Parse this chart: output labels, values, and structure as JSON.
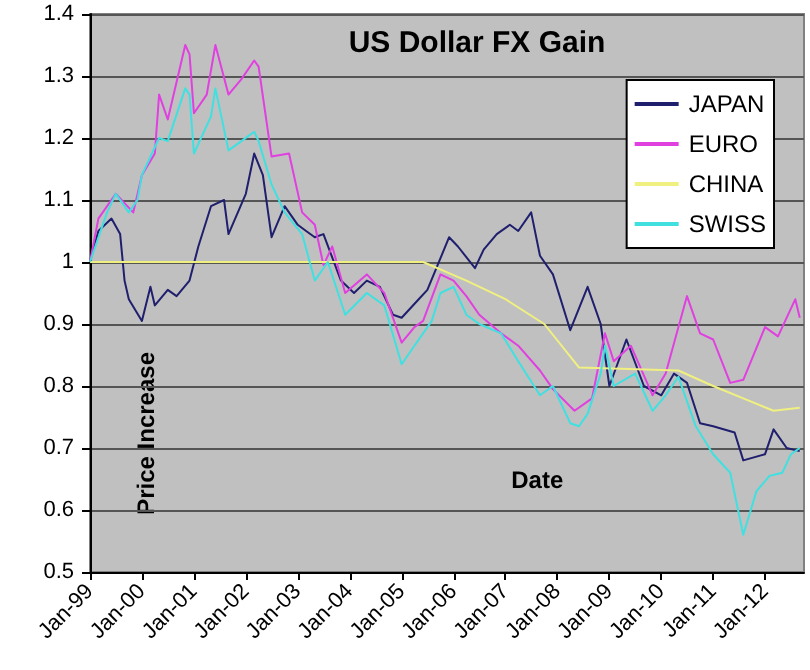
{
  "chart_data": {
    "type": "line",
    "title": "US Dollar FX Gain",
    "xlabel": "Date",
    "ylabel": "Price Increase",
    "xlim": [
      "1999-01",
      "2012-10"
    ],
    "xticks": [
      {
        "value": "1999-01",
        "label": "Jan-99"
      },
      {
        "value": "2000-01",
        "label": "Jan-00"
      },
      {
        "value": "2001-01",
        "label": "Jan-01"
      },
      {
        "value": "2002-01",
        "label": "Jan-02"
      },
      {
        "value": "2003-01",
        "label": "Jan-03"
      },
      {
        "value": "2004-01",
        "label": "Jan-04"
      },
      {
        "value": "2005-01",
        "label": "Jan-05"
      },
      {
        "value": "2006-01",
        "label": "Jan-06"
      },
      {
        "value": "2007-01",
        "label": "Jan-07"
      },
      {
        "value": "2008-01",
        "label": "Jan-08"
      },
      {
        "value": "2009-01",
        "label": "Jan-09"
      },
      {
        "value": "2010-01",
        "label": "Jan-10"
      },
      {
        "value": "2011-01",
        "label": "Jan-11"
      },
      {
        "value": "2012-01",
        "label": "Jan-12"
      }
    ],
    "ylim": [
      0.5,
      1.4
    ],
    "yticks": [
      0.5,
      0.6,
      0.7,
      0.8,
      0.9,
      1,
      1.1,
      1.2,
      1.3,
      1.4
    ],
    "grid": "y",
    "legend": "top right",
    "marker": "none",
    "line_style": "solid",
    "series": [
      {
        "name": "JAPAN",
        "color": "#1f1f6e",
        "x": [
          "1999-01",
          "1999-03",
          "1999-06",
          "1999-08",
          "1999-09",
          "1999-10",
          "2000-01",
          "2000-03",
          "2000-04",
          "2000-07",
          "2000-09",
          "2000-12",
          "2001-02",
          "2001-05",
          "2001-08",
          "2001-09",
          "2002-01",
          "2002-03",
          "2002-05",
          "2002-07",
          "2002-10",
          "2003-01",
          "2003-03",
          "2003-05",
          "2003-07",
          "2003-11",
          "2004-02",
          "2004-05",
          "2004-08",
          "2004-11",
          "2005-01",
          "2005-05",
          "2005-07",
          "2005-12",
          "2006-02",
          "2006-06",
          "2006-08",
          "2006-11",
          "2007-02",
          "2007-04",
          "2007-07",
          "2007-09",
          "2007-12",
          "2008-04",
          "2008-08",
          "2008-11",
          "2009-01",
          "2009-05",
          "2009-09",
          "2010-01",
          "2010-04",
          "2010-07",
          "2010-10",
          "2011-01",
          "2011-06",
          "2011-08",
          "2012-01",
          "2012-03",
          "2012-06",
          "2012-09"
        ],
        "values": [
          1.0,
          1.05,
          1.07,
          1.045,
          0.97,
          0.94,
          0.905,
          0.96,
          0.93,
          0.955,
          0.945,
          0.97,
          1.025,
          1.09,
          1.1,
          1.045,
          1.11,
          1.175,
          1.14,
          1.04,
          1.09,
          1.06,
          1.05,
          1.04,
          1.045,
          0.97,
          0.95,
          0.97,
          0.96,
          0.915,
          0.91,
          0.94,
          0.955,
          1.04,
          1.025,
          0.99,
          1.02,
          1.045,
          1.06,
          1.05,
          1.08,
          1.01,
          0.98,
          0.89,
          0.96,
          0.9,
          0.8,
          0.875,
          0.8,
          0.785,
          0.82,
          0.805,
          0.74,
          0.735,
          0.725,
          0.68,
          0.69,
          0.73,
          0.7,
          0.695
        ]
      },
      {
        "name": "EURO",
        "color": "#e040e0",
        "x": [
          "1999-01",
          "1999-03",
          "1999-07",
          "1999-09",
          "1999-11",
          "2000-01",
          "2000-04",
          "2000-05",
          "2000-07",
          "2000-11",
          "2000-12",
          "2001-01",
          "2001-04",
          "2001-06",
          "2001-09",
          "2001-12",
          "2002-03",
          "2002-04",
          "2002-07",
          "2002-11",
          "2003-02",
          "2003-05",
          "2003-07",
          "2003-09",
          "2003-12",
          "2004-05",
          "2004-09",
          "2005-01",
          "2005-04",
          "2005-06",
          "2005-10",
          "2006-01",
          "2006-04",
          "2006-07",
          "2006-12",
          "2007-04",
          "2007-09",
          "2007-12",
          "2008-05",
          "2008-09",
          "2008-12",
          "2009-02",
          "2009-06",
          "2009-11",
          "2010-02",
          "2010-07",
          "2010-10",
          "2011-01",
          "2011-05",
          "2011-08",
          "2012-01",
          "2012-04",
          "2012-08",
          "2012-09"
        ],
        "values": [
          1.0,
          1.07,
          1.11,
          1.095,
          1.08,
          1.14,
          1.175,
          1.27,
          1.23,
          1.35,
          1.335,
          1.24,
          1.27,
          1.35,
          1.27,
          1.295,
          1.325,
          1.315,
          1.17,
          1.175,
          1.08,
          1.06,
          0.995,
          1.025,
          0.95,
          0.98,
          0.95,
          0.87,
          0.895,
          0.905,
          0.98,
          0.97,
          0.945,
          0.915,
          0.885,
          0.865,
          0.825,
          0.795,
          0.76,
          0.78,
          0.885,
          0.84,
          0.865,
          0.785,
          0.82,
          0.945,
          0.885,
          0.875,
          0.805,
          0.81,
          0.895,
          0.88,
          0.94,
          0.91
        ]
      },
      {
        "name": "CHINA",
        "color": "#f0f080",
        "x": [
          "1999-01",
          "2005-06",
          "2006-04",
          "2007-01",
          "2007-10",
          "2008-06",
          "2010-05",
          "2011-01",
          "2011-08",
          "2012-03",
          "2012-09"
        ],
        "values": [
          1.0,
          1.0,
          0.97,
          0.94,
          0.9,
          0.83,
          0.825,
          0.8,
          0.78,
          0.76,
          0.765
        ]
      },
      {
        "name": "SWISS",
        "color": "#40e0e0",
        "x": [
          "1999-01",
          "1999-05",
          "1999-07",
          "1999-10",
          "1999-12",
          "2000-01",
          "2000-05",
          "2000-07",
          "2000-11",
          "2000-12",
          "2001-01",
          "2001-05",
          "2001-06",
          "2001-09",
          "2001-12",
          "2002-03",
          "2002-04",
          "2002-07",
          "2002-10",
          "2003-02",
          "2003-05",
          "2003-08",
          "2003-12",
          "2004-05",
          "2004-09",
          "2005-01",
          "2005-04",
          "2005-08",
          "2005-10",
          "2006-01",
          "2006-04",
          "2006-07",
          "2006-12",
          "2007-04",
          "2007-09",
          "2007-12",
          "2008-04",
          "2008-06",
          "2008-08",
          "2008-11",
          "2008-12",
          "2009-02",
          "2009-07",
          "2009-11",
          "2010-02",
          "2010-05",
          "2010-09",
          "2011-01",
          "2011-05",
          "2011-08",
          "2011-11",
          "2012-02",
          "2012-05",
          "2012-07",
          "2012-09"
        ],
        "values": [
          1.0,
          1.08,
          1.11,
          1.08,
          1.1,
          1.14,
          1.2,
          1.195,
          1.28,
          1.27,
          1.175,
          1.235,
          1.28,
          1.18,
          1.195,
          1.21,
          1.195,
          1.125,
          1.08,
          1.045,
          0.97,
          1.0,
          0.915,
          0.95,
          0.93,
          0.835,
          0.865,
          0.905,
          0.95,
          0.96,
          0.915,
          0.9,
          0.885,
          0.84,
          0.785,
          0.8,
          0.74,
          0.735,
          0.755,
          0.82,
          0.865,
          0.8,
          0.82,
          0.76,
          0.785,
          0.815,
          0.735,
          0.69,
          0.66,
          0.56,
          0.63,
          0.655,
          0.66,
          0.69,
          0.7
        ]
      }
    ]
  }
}
